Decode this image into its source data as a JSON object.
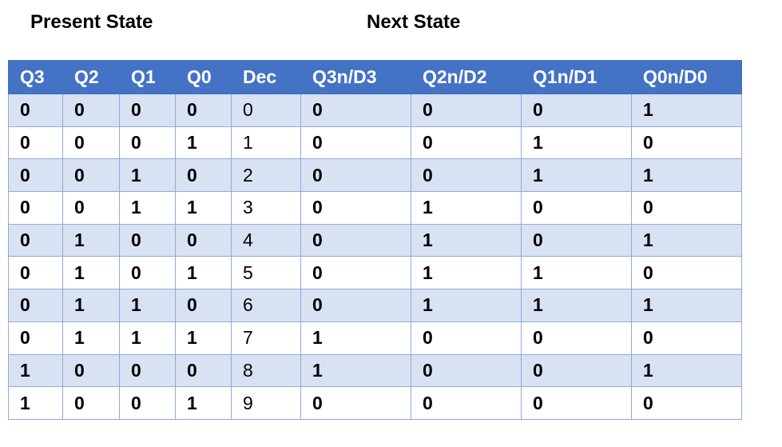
{
  "titles": {
    "present": "Present State",
    "next": "Next State"
  },
  "columns": [
    "Q3",
    "Q2",
    "Q1",
    "Q0",
    "Dec",
    "Q3n/D3",
    "Q2n/D2",
    "Q1n/D1",
    "Q0n/D0"
  ],
  "rows": [
    [
      "0",
      "0",
      "0",
      "0",
      "0",
      "0",
      "0",
      "0",
      "1"
    ],
    [
      "0",
      "0",
      "0",
      "1",
      "1",
      "0",
      "0",
      "1",
      "0"
    ],
    [
      "0",
      "0",
      "1",
      "0",
      "2",
      "0",
      "0",
      "1",
      "1"
    ],
    [
      "0",
      "0",
      "1",
      "1",
      "3",
      "0",
      "1",
      "0",
      "0"
    ],
    [
      "0",
      "1",
      "0",
      "0",
      "4",
      "0",
      "1",
      "0",
      "1"
    ],
    [
      "0",
      "1",
      "0",
      "1",
      "5",
      "0",
      "1",
      "1",
      "0"
    ],
    [
      "0",
      "1",
      "1",
      "0",
      "6",
      "0",
      "1",
      "1",
      "1"
    ],
    [
      "0",
      "1",
      "1",
      "1",
      "7",
      "1",
      "0",
      "0",
      "0"
    ],
    [
      "1",
      "0",
      "0",
      "0",
      "8",
      "1",
      "0",
      "0",
      "1"
    ],
    [
      "1",
      "0",
      "0",
      "1",
      "9",
      "0",
      "0",
      "0",
      "0"
    ]
  ],
  "colors": {
    "header_bg": "#4472c4",
    "header_text": "#ffffff",
    "band_row": "#d9e2f3",
    "border": "#8eaadb"
  }
}
